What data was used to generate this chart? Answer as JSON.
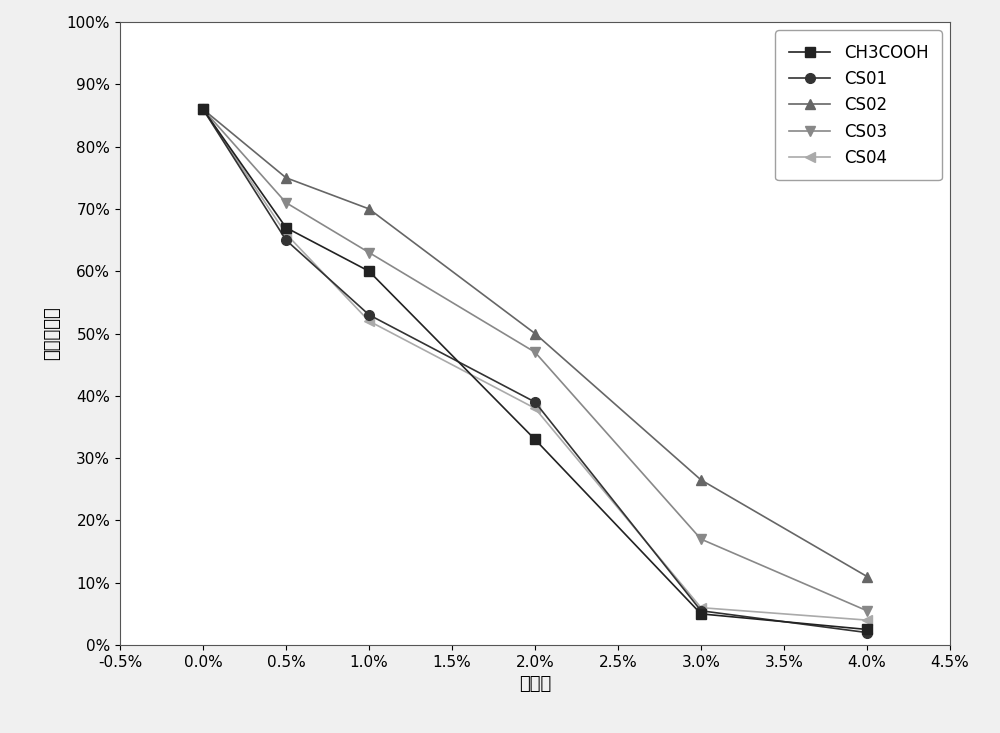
{
  "x_values": [
    0.0,
    0.005,
    0.01,
    0.02,
    0.03,
    0.04
  ],
  "series": {
    "CH3COOH": {
      "y": [
        0.86,
        0.67,
        0.6,
        0.33,
        0.05,
        0.025
      ],
      "marker": "s",
      "color": "#222222",
      "linestyle": "-",
      "linewidth": 1.2,
      "markersize": 7,
      "markerfacecolor": "#222222",
      "zorder": 5
    },
    "CS01": {
      "y": [
        0.86,
        0.65,
        0.53,
        0.39,
        0.055,
        0.02
      ],
      "marker": "o",
      "color": "#333333",
      "linestyle": "-",
      "linewidth": 1.2,
      "markersize": 7,
      "markerfacecolor": "#333333",
      "zorder": 4
    },
    "CS02": {
      "y": [
        0.86,
        0.75,
        0.7,
        0.5,
        0.265,
        0.11
      ],
      "marker": "^",
      "color": "#666666",
      "linestyle": "-",
      "linewidth": 1.2,
      "markersize": 7,
      "markerfacecolor": "#666666",
      "zorder": 3
    },
    "CS03": {
      "y": [
        0.86,
        0.71,
        0.63,
        0.47,
        0.17,
        0.055
      ],
      "marker": "v",
      "color": "#888888",
      "linestyle": "-",
      "linewidth": 1.2,
      "markersize": 7,
      "markerfacecolor": "#888888",
      "zorder": 2
    },
    "CS04": {
      "y": [
        0.86,
        0.66,
        0.52,
        0.38,
        0.06,
        0.04
      ],
      "marker": "<",
      "color": "#aaaaaa",
      "linestyle": "-",
      "linewidth": 1.2,
      "markersize": 7,
      "markerfacecolor": "#aaaaaa",
      "zorder": 1
    }
  },
  "xlabel": "添加量",
  "ylabel": "结焦抑制率",
  "xlim": [
    -0.005,
    0.045
  ],
  "ylim": [
    0.0,
    1.0
  ],
  "x_ticks": [
    -0.005,
    0.0,
    0.005,
    0.01,
    0.015,
    0.02,
    0.025,
    0.03,
    0.035,
    0.04,
    0.045
  ],
  "y_ticks": [
    0.0,
    0.1,
    0.2,
    0.3,
    0.4,
    0.5,
    0.6,
    0.7,
    0.8,
    0.9,
    1.0
  ],
  "legend_loc": "upper right",
  "background_color": "#f0f0f0",
  "plot_bg_color": "#ffffff",
  "font_size": 12,
  "label_font_size": 13,
  "tick_font_size": 11
}
